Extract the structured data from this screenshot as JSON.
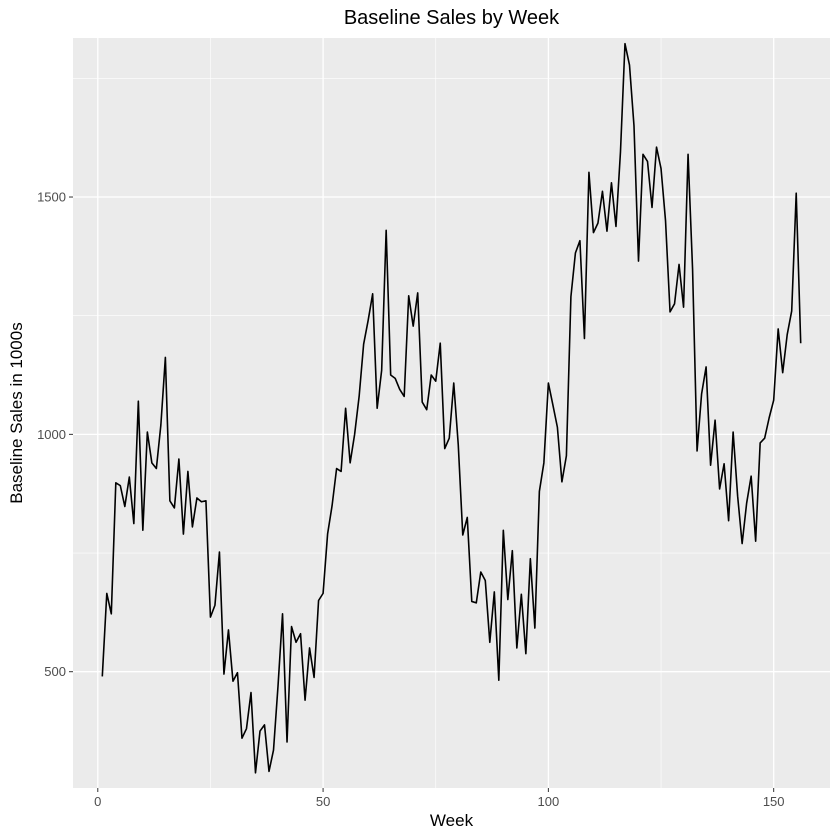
{
  "chart_data": {
    "type": "line",
    "title": "Baseline Sales by Week",
    "xlabel": "Week",
    "ylabel": "Baseline Sales in 1000s",
    "xlim": [
      -5.5,
      162.5
    ],
    "ylim": [
      255,
      1835
    ],
    "x_ticks": [
      0,
      50,
      100,
      150
    ],
    "x_tick_labels": [
      "0",
      "50",
      "100",
      "150"
    ],
    "y_ticks": [
      500,
      1000,
      1500
    ],
    "y_tick_labels": [
      "500",
      "1000",
      "1500"
    ],
    "grid": true,
    "line_color": "#000000",
    "panel_background": "#ebebeb",
    "grid_color": "#ffffff",
    "series": [
      {
        "x": [
          1,
          2,
          3,
          4,
          5,
          6,
          7,
          8,
          9,
          10,
          11,
          12,
          13,
          14,
          15,
          16,
          17,
          18,
          19,
          20,
          21,
          22,
          23,
          24,
          25,
          26,
          27,
          28,
          29,
          30,
          31,
          32,
          33,
          34,
          35,
          36,
          37,
          38,
          39,
          40,
          41,
          42,
          43,
          44,
          45,
          46,
          47,
          48,
          49,
          50,
          51,
          52,
          53,
          54,
          55,
          56,
          57,
          58,
          59,
          60,
          61,
          62,
          63,
          64,
          65,
          66,
          67,
          68,
          69,
          70,
          71,
          72,
          73,
          74,
          75,
          76,
          77,
          78,
          79,
          80,
          81,
          82,
          83,
          84,
          85,
          86,
          87,
          88,
          89,
          90,
          91,
          92,
          93,
          94,
          95,
          96,
          97,
          98,
          99,
          100,
          101,
          102,
          103,
          104,
          105,
          106,
          107,
          108,
          109,
          110,
          111,
          112,
          113,
          114,
          115,
          116,
          117,
          118,
          119,
          120,
          121,
          122,
          123,
          124,
          125,
          126,
          127,
          128,
          129,
          130,
          131,
          132,
          133,
          134,
          135,
          136,
          137,
          138,
          139,
          140,
          141,
          142,
          143,
          144,
          145,
          146,
          147,
          148,
          149,
          150,
          151,
          152,
          153,
          154,
          155,
          156
        ],
        "values": [
          490,
          665,
          622,
          898,
          892,
          848,
          910,
          812,
          1070,
          798,
          1005,
          940,
          928,
          1020,
          1162,
          860,
          845,
          948,
          790,
          922,
          805,
          866,
          858,
          860,
          615,
          640,
          752,
          495,
          588,
          480,
          498,
          360,
          380,
          456,
          287,
          375,
          388,
          290,
          335,
          470,
          622,
          352,
          595,
          562,
          580,
          440,
          550,
          488,
          650,
          665,
          790,
          850,
          928,
          922,
          1055,
          940,
          1000,
          1080,
          1190,
          1240,
          1296,
          1055,
          1135,
          1430,
          1125,
          1118,
          1095,
          1080,
          1292,
          1228,
          1298,
          1068,
          1052,
          1125,
          1112,
          1192,
          970,
          992,
          1108,
          978,
          788,
          825,
          648,
          645,
          710,
          692,
          562,
          668,
          482,
          798,
          652,
          755,
          550,
          663,
          538,
          738,
          592,
          880,
          940,
          1108,
          1062,
          1015,
          900,
          955,
          1290,
          1382,
          1408,
          1202,
          1552,
          1425,
          1445,
          1512,
          1428,
          1530,
          1438,
          1595,
          1823,
          1778,
          1650,
          1365,
          1590,
          1575,
          1478,
          1605,
          1560,
          1450,
          1258,
          1275,
          1358,
          1268,
          1590,
          1348,
          965,
          1085,
          1142,
          935,
          1030,
          885,
          938,
          818,
          1005,
          870,
          770,
          855,
          912,
          775,
          982,
          992,
          1035,
          1072,
          1222,
          1130,
          1210,
          1260,
          1508,
          1192
        ]
      }
    ]
  }
}
